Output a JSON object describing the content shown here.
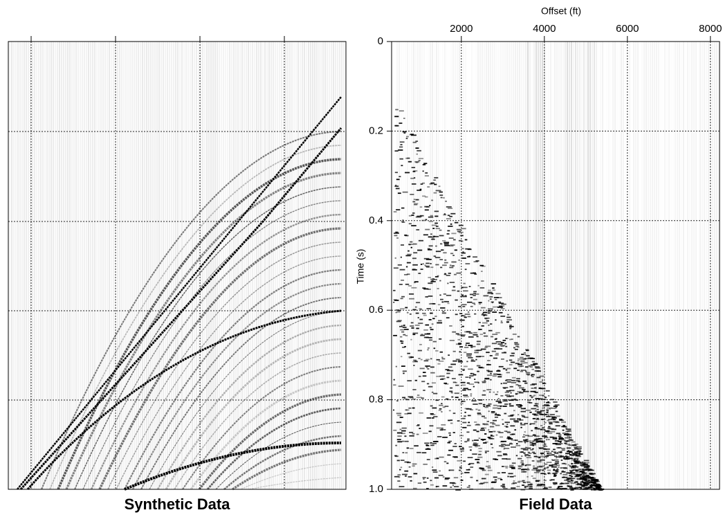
{
  "chart_data": [
    {
      "type": "seismic",
      "title": "Synthetic Data"
    },
    {
      "type": "seismic",
      "title": "Field Data",
      "xlabel": "Offset (ft)",
      "ylabel": "Time (s)",
      "xlim": [
        320,
        8220
      ],
      "ylim": [
        0,
        1
      ],
      "xticks": [
        2000,
        4000,
        6000,
        8000
      ],
      "yticks": [
        0,
        0.2,
        0.4,
        0.6,
        0.8,
        {
          "value": 1,
          "label": "1.0"
        }
      ],
      "grid": true
    }
  ]
}
